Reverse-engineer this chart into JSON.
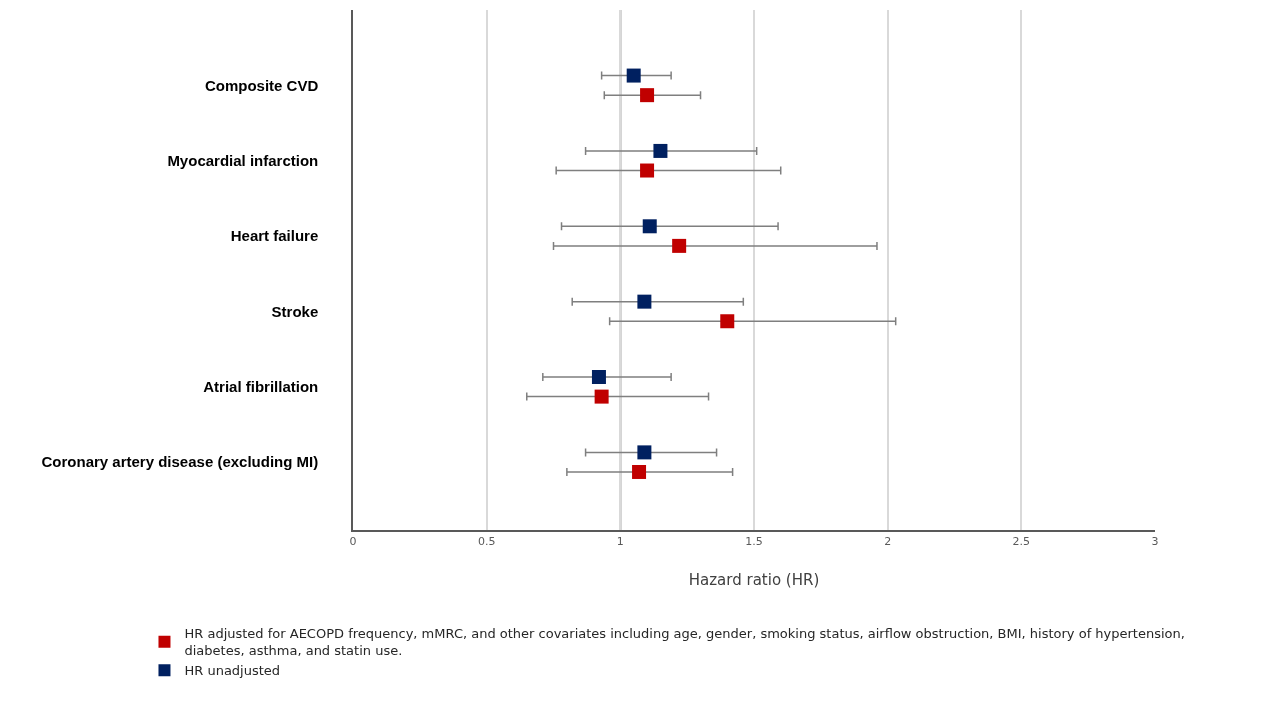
{
  "chart_data": {
    "type": "scatter",
    "orientation": "horizontal",
    "xlabel": "Hazard ratio (HR)",
    "categories": [
      "Composite CVD",
      "Myocardial infarction",
      "Heart failure",
      "Stroke",
      "Atrial fibrillation",
      "Coronary artery disease (excluding MI)"
    ],
    "series": [
      {
        "name": "HR adjusted for AECOPD frequency, mMRC, and other covariates including age, gender, smoking status, airflow obstruction, BMI, history of hypertension, diabetes, asthma, and statin use.",
        "color": "#c00000",
        "values": [
          1.1,
          1.1,
          1.22,
          1.4,
          0.93,
          1.07
        ],
        "errors": [
          [
            0.94,
            1.3
          ],
          [
            0.76,
            1.6
          ],
          [
            0.75,
            1.96
          ],
          [
            0.96,
            2.03
          ],
          [
            0.65,
            1.33
          ],
          [
            0.8,
            1.42
          ]
        ]
      },
      {
        "name": "HR unadjusted",
        "color": "#002060",
        "values": [
          1.05,
          1.15,
          1.11,
          1.09,
          0.92,
          1.09
        ],
        "errors": [
          [
            0.93,
            1.19
          ],
          [
            0.87,
            1.51
          ],
          [
            0.78,
            1.59
          ],
          [
            0.82,
            1.46
          ],
          [
            0.71,
            1.19
          ],
          [
            0.87,
            1.36
          ]
        ]
      }
    ],
    "xlim": [
      0,
      3
    ],
    "xticks": [
      0,
      0.5,
      1,
      1.5,
      2,
      2.5,
      3
    ],
    "ref_lines": [
      {
        "axis": "x",
        "value": 1,
        "color": "#7f7f7f"
      }
    ],
    "grid": "x",
    "legend": "bottom",
    "marker": "square"
  }
}
